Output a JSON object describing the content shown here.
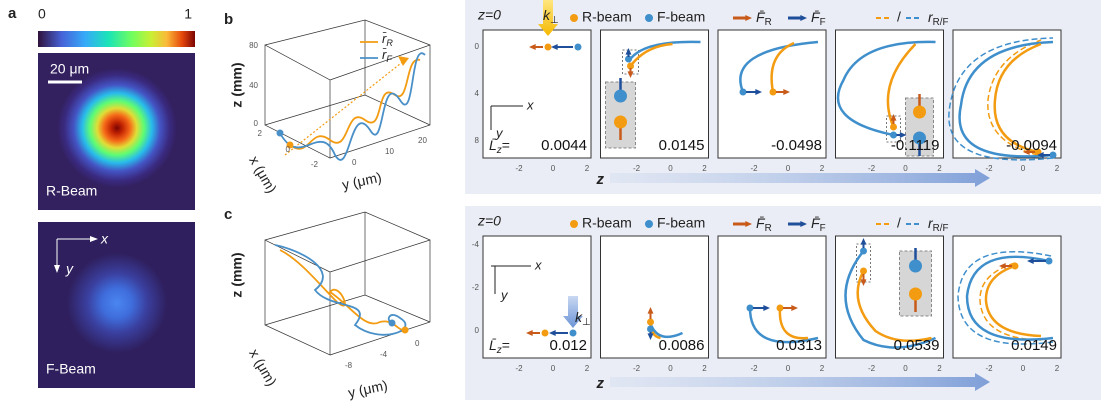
{
  "panel_a": {
    "label": "a",
    "colorbar_min": "0",
    "colorbar_max": "1",
    "scale_bar": "20 μm",
    "top_image_label": "R-Beam",
    "bottom_image_label": "F-Beam",
    "axis_x": "x",
    "axis_y": "y"
  },
  "panel_b": {
    "label": "b",
    "z_label": "z (mm)",
    "x_label": "x (μm)",
    "y_label": "y (μm)",
    "z_ticks": [
      "80",
      "40",
      "0"
    ],
    "x_ticks": [
      "2",
      "0",
      "-2"
    ],
    "y_ticks": [
      "0",
      "10",
      "20"
    ],
    "legend": [
      {
        "symbol": "r̄",
        "subscript": "R"
      },
      {
        "symbol": "r̄",
        "subscript": "F"
      }
    ]
  },
  "panel_c": {
    "label": "c",
    "z_label": "z (mm)",
    "x_label": "x (μm)",
    "y_label": "y (μm)",
    "y_ticks": [
      "-8",
      "-4",
      "0"
    ]
  },
  "panel_top": {
    "start_label": "z=0",
    "legend": {
      "r_beam": "R-beam",
      "f_beam": "F-beam",
      "force_r": {
        "symbol": "F̄",
        "subscript": "R"
      },
      "force_f": {
        "symbol": "F̄",
        "subscript": "F"
      },
      "separator": "/",
      "radius": {
        "symbol": "r",
        "subscript": "R/F"
      }
    },
    "k_label": {
      "symbol": "k",
      "subscript": "⊥"
    },
    "axis_x": "x",
    "axis_y": "y",
    "lz_label": {
      "symbol": "L̄",
      "subscript": "z",
      "suffix": "="
    },
    "x_ticks": [
      "-2",
      "0",
      "2"
    ],
    "y_ticks": [
      "0",
      "4",
      "8"
    ],
    "values": [
      "0.0044",
      "0.0145",
      "-0.0498",
      "-0.1119",
      "-0.0094"
    ],
    "arrow_label": "z"
  },
  "panel_bottom": {
    "start_label": "z=0",
    "legend": {
      "r_beam": "R-beam",
      "f_beam": "F-beam",
      "force_r": {
        "symbol": "F̄",
        "subscript": "R"
      },
      "force_f": {
        "symbol": "F̄",
        "subscript": "F"
      },
      "separator": "/",
      "radius": {
        "symbol": "r",
        "subscript": "R/F"
      }
    },
    "k_label": {
      "symbol": "k",
      "subscript": "⊥"
    },
    "axis_x": "x",
    "axis_y": "y",
    "lz_label": {
      "symbol": "L̄",
      "subscript": "z",
      "suffix": "="
    },
    "x_ticks": [
      "-2",
      "0",
      "2"
    ],
    "y_ticks": [
      "-4",
      "-2",
      "0"
    ],
    "values": [
      "0.012",
      "0.0086",
      "0.0313",
      "0.0539",
      "0.0149"
    ],
    "arrow_label": "z"
  }
}
